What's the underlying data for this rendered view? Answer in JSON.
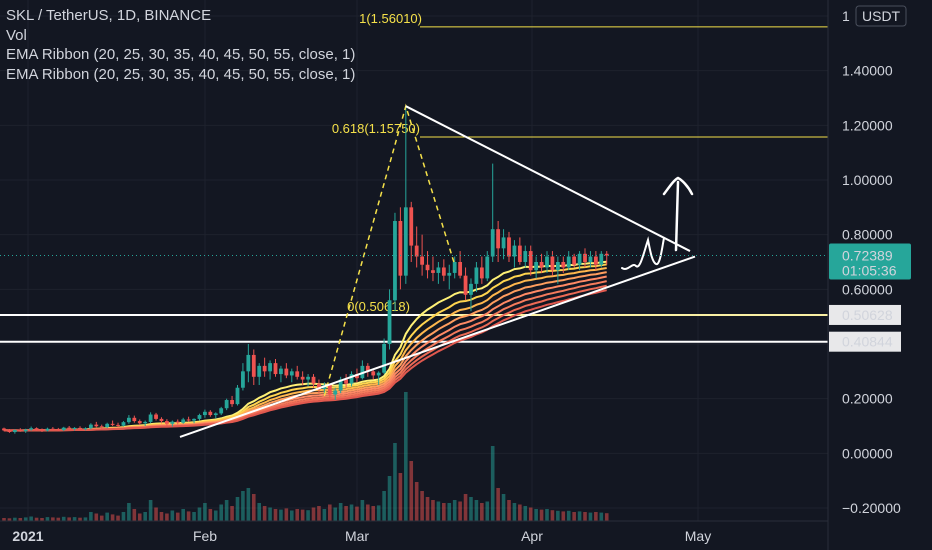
{
  "header": {
    "symbol": "SKL / TetherUS, 1D, BINANCE",
    "volume_label": "Vol",
    "indicators": [
      "EMA Ribbon (20, 25, 30, 35, 40, 45, 50, 55, close, 1)",
      "EMA Ribbon (20, 25, 30, 35, 40, 45, 50, 55, close, 1)"
    ]
  },
  "colors": {
    "background": "#131722",
    "up": "#26a69a",
    "down": "#ef5350",
    "fib": "#f5e14a",
    "price_tag": "#26a69a",
    "ribbon": [
      "#fff176",
      "#ffd54f",
      "#ffb74d",
      "#ff9e5e",
      "#ff8a65",
      "#f47b5c",
      "#ec6a55",
      "#e0584e"
    ]
  },
  "chart_data": {
    "type": "candlestick",
    "x_labels": [
      "2021",
      "Feb",
      "Mar",
      "Apr",
      "May"
    ],
    "y_ticks": [
      "1.60000",
      "1.40000",
      "1.20000",
      "1.00000",
      "0.80000",
      "0.60000",
      "0.40000",
      "0.20000",
      "0.00000",
      "−0.20000"
    ],
    "y_tick_values": [
      1.6,
      1.4,
      1.2,
      1.0,
      0.8,
      0.6,
      0.4,
      0.2,
      0.0,
      -0.2
    ],
    "ylim": [
      -0.2,
      1.6
    ],
    "currency_label": "USDT",
    "currency_prefix": "1",
    "last_price": "0.72389",
    "last_price_value": 0.72389,
    "countdown": "01:05:36",
    "horizontal_levels": [
      {
        "label": "0.50628",
        "value": 0.50628
      },
      {
        "label": "0.40844",
        "value": 0.40844
      }
    ],
    "fib_levels": [
      {
        "label": "1(1.56010)",
        "value": 1.5601
      },
      {
        "label": "0.618(1.15750)",
        "value": 1.1575
      },
      {
        "label": "0(0.50618)",
        "value": 0.50618
      }
    ],
    "candles": [
      [
        0.091,
        0.094,
        0.081,
        0.084
      ],
      [
        0.084,
        0.089,
        0.075,
        0.078
      ],
      [
        0.078,
        0.088,
        0.072,
        0.085
      ],
      [
        0.085,
        0.092,
        0.079,
        0.081
      ],
      [
        0.081,
        0.09,
        0.075,
        0.087
      ],
      [
        0.087,
        0.098,
        0.083,
        0.092
      ],
      [
        0.092,
        0.095,
        0.082,
        0.086
      ],
      [
        0.086,
        0.091,
        0.078,
        0.083
      ],
      [
        0.083,
        0.094,
        0.08,
        0.09
      ],
      [
        0.09,
        0.096,
        0.084,
        0.088
      ],
      [
        0.088,
        0.093,
        0.08,
        0.085
      ],
      [
        0.085,
        0.097,
        0.082,
        0.094
      ],
      [
        0.094,
        0.1,
        0.086,
        0.089
      ],
      [
        0.089,
        0.096,
        0.083,
        0.093
      ],
      [
        0.093,
        0.099,
        0.087,
        0.09
      ],
      [
        0.09,
        0.095,
        0.084,
        0.092
      ],
      [
        0.092,
        0.11,
        0.088,
        0.105
      ],
      [
        0.105,
        0.115,
        0.095,
        0.099
      ],
      [
        0.099,
        0.105,
        0.09,
        0.096
      ],
      [
        0.096,
        0.112,
        0.092,
        0.108
      ],
      [
        0.108,
        0.12,
        0.1,
        0.104
      ],
      [
        0.104,
        0.112,
        0.096,
        0.101
      ],
      [
        0.101,
        0.118,
        0.098,
        0.114
      ],
      [
        0.114,
        0.14,
        0.108,
        0.13
      ],
      [
        0.13,
        0.138,
        0.112,
        0.118
      ],
      [
        0.118,
        0.124,
        0.104,
        0.11
      ],
      [
        0.11,
        0.12,
        0.1,
        0.115
      ],
      [
        0.115,
        0.15,
        0.11,
        0.142
      ],
      [
        0.142,
        0.148,
        0.12,
        0.126
      ],
      [
        0.126,
        0.132,
        0.11,
        0.118
      ],
      [
        0.118,
        0.125,
        0.102,
        0.108
      ],
      [
        0.108,
        0.12,
        0.098,
        0.116
      ],
      [
        0.116,
        0.124,
        0.106,
        0.112
      ],
      [
        0.112,
        0.13,
        0.108,
        0.124
      ],
      [
        0.124,
        0.134,
        0.116,
        0.12
      ],
      [
        0.12,
        0.128,
        0.11,
        0.126
      ],
      [
        0.126,
        0.145,
        0.12,
        0.14
      ],
      [
        0.14,
        0.16,
        0.13,
        0.152
      ],
      [
        0.152,
        0.158,
        0.134,
        0.14
      ],
      [
        0.14,
        0.15,
        0.128,
        0.146
      ],
      [
        0.146,
        0.17,
        0.14,
        0.165
      ],
      [
        0.165,
        0.2,
        0.158,
        0.195
      ],
      [
        0.195,
        0.21,
        0.17,
        0.18
      ],
      [
        0.18,
        0.25,
        0.175,
        0.24
      ],
      [
        0.24,
        0.33,
        0.23,
        0.3
      ],
      [
        0.3,
        0.4,
        0.26,
        0.36
      ],
      [
        0.36,
        0.38,
        0.25,
        0.28
      ],
      [
        0.28,
        0.33,
        0.25,
        0.32
      ],
      [
        0.32,
        0.35,
        0.28,
        0.3
      ],
      [
        0.3,
        0.34,
        0.27,
        0.33
      ],
      [
        0.33,
        0.345,
        0.28,
        0.29
      ],
      [
        0.29,
        0.32,
        0.26,
        0.31
      ],
      [
        0.31,
        0.33,
        0.275,
        0.285
      ],
      [
        0.285,
        0.31,
        0.26,
        0.3
      ],
      [
        0.3,
        0.32,
        0.27,
        0.28
      ],
      [
        0.28,
        0.3,
        0.25,
        0.27
      ],
      [
        0.27,
        0.29,
        0.245,
        0.28
      ],
      [
        0.28,
        0.29,
        0.24,
        0.255
      ],
      [
        0.255,
        0.27,
        0.22,
        0.235
      ],
      [
        0.235,
        0.26,
        0.22,
        0.25
      ],
      [
        0.25,
        0.255,
        0.2,
        0.215
      ],
      [
        0.215,
        0.24,
        0.195,
        0.23
      ],
      [
        0.23,
        0.28,
        0.22,
        0.27
      ],
      [
        0.27,
        0.29,
        0.24,
        0.255
      ],
      [
        0.255,
        0.3,
        0.245,
        0.29
      ],
      [
        0.29,
        0.31,
        0.26,
        0.275
      ],
      [
        0.275,
        0.34,
        0.27,
        0.32
      ],
      [
        0.32,
        0.33,
        0.28,
        0.3
      ],
      [
        0.3,
        0.31,
        0.27,
        0.285
      ],
      [
        0.285,
        0.3,
        0.25,
        0.295
      ],
      [
        0.295,
        0.42,
        0.29,
        0.4
      ],
      [
        0.4,
        0.6,
        0.38,
        0.56
      ],
      [
        0.56,
        0.88,
        0.52,
        0.85
      ],
      [
        0.85,
        0.9,
        0.6,
        0.65
      ],
      [
        0.65,
        1.27,
        0.62,
        0.9
      ],
      [
        0.9,
        0.92,
        0.7,
        0.76
      ],
      [
        0.76,
        0.83,
        0.68,
        0.72
      ],
      [
        0.72,
        0.8,
        0.65,
        0.69
      ],
      [
        0.69,
        0.74,
        0.64,
        0.67
      ],
      [
        0.67,
        0.72,
        0.63,
        0.66
      ],
      [
        0.66,
        0.7,
        0.62,
        0.68
      ],
      [
        0.68,
        0.71,
        0.63,
        0.65
      ],
      [
        0.65,
        0.69,
        0.6,
        0.66
      ],
      [
        0.66,
        0.72,
        0.64,
        0.7
      ],
      [
        0.7,
        0.74,
        0.64,
        0.65
      ],
      [
        0.65,
        0.68,
        0.56,
        0.58
      ],
      [
        0.58,
        0.64,
        0.52,
        0.62
      ],
      [
        0.62,
        0.7,
        0.59,
        0.68
      ],
      [
        0.68,
        0.72,
        0.62,
        0.64
      ],
      [
        0.64,
        0.74,
        0.63,
        0.72
      ],
      [
        0.72,
        1.06,
        0.7,
        0.82
      ],
      [
        0.82,
        0.85,
        0.7,
        0.75
      ],
      [
        0.75,
        0.82,
        0.71,
        0.79
      ],
      [
        0.79,
        0.81,
        0.7,
        0.72
      ],
      [
        0.72,
        0.78,
        0.68,
        0.76
      ],
      [
        0.76,
        0.79,
        0.69,
        0.7
      ],
      [
        0.7,
        0.76,
        0.68,
        0.74
      ],
      [
        0.74,
        0.76,
        0.65,
        0.67
      ],
      [
        0.67,
        0.72,
        0.64,
        0.7
      ],
      [
        0.7,
        0.73,
        0.66,
        0.68
      ],
      [
        0.68,
        0.74,
        0.66,
        0.72
      ],
      [
        0.72,
        0.74,
        0.65,
        0.67
      ],
      [
        0.67,
        0.72,
        0.62,
        0.7
      ],
      [
        0.7,
        0.72,
        0.66,
        0.68
      ],
      [
        0.68,
        0.74,
        0.67,
        0.72
      ],
      [
        0.72,
        0.73,
        0.68,
        0.69
      ],
      [
        0.69,
        0.74,
        0.67,
        0.73
      ],
      [
        0.73,
        0.75,
        0.68,
        0.7
      ],
      [
        0.7,
        0.74,
        0.68,
        0.72
      ],
      [
        0.72,
        0.74,
        0.67,
        0.69
      ],
      [
        0.69,
        0.74,
        0.68,
        0.73
      ],
      [
        0.73,
        0.74,
        0.69,
        0.724
      ]
    ],
    "volumes": [
      0.01,
      0.009,
      0.011,
      0.01,
      0.012,
      0.015,
      0.011,
      0.01,
      0.013,
      0.012,
      0.011,
      0.014,
      0.012,
      0.013,
      0.011,
      0.012,
      0.03,
      0.025,
      0.018,
      0.028,
      0.022,
      0.018,
      0.03,
      0.06,
      0.04,
      0.025,
      0.03,
      0.07,
      0.045,
      0.03,
      0.025,
      0.035,
      0.028,
      0.04,
      0.032,
      0.03,
      0.045,
      0.06,
      0.04,
      0.035,
      0.055,
      0.07,
      0.05,
      0.08,
      0.1,
      0.11,
      0.09,
      0.06,
      0.05,
      0.045,
      0.04,
      0.038,
      0.042,
      0.035,
      0.04,
      0.038,
      0.036,
      0.045,
      0.05,
      0.04,
      0.055,
      0.045,
      0.06,
      0.05,
      0.055,
      0.048,
      0.07,
      0.055,
      0.05,
      0.052,
      0.1,
      0.15,
      0.26,
      0.16,
      0.43,
      0.2,
      0.13,
      0.1,
      0.08,
      0.07,
      0.065,
      0.06,
      0.06,
      0.07,
      0.065,
      0.09,
      0.08,
      0.07,
      0.06,
      0.065,
      0.25,
      0.11,
      0.09,
      0.07,
      0.06,
      0.055,
      0.05,
      0.045,
      0.04,
      0.038,
      0.04,
      0.036,
      0.034,
      0.032,
      0.034,
      0.03,
      0.032,
      0.03,
      0.028,
      0.03,
      0.028,
      0.026
    ]
  }
}
